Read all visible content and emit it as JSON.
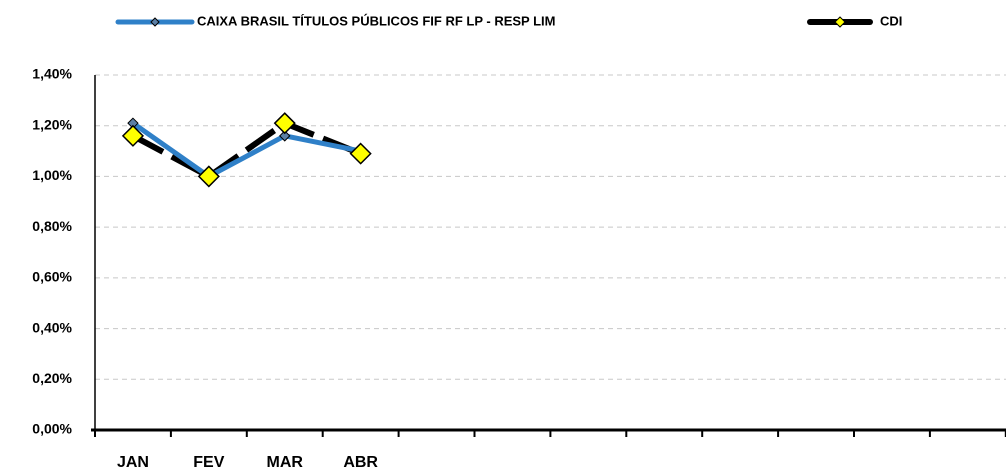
{
  "chart_data": {
    "type": "line",
    "categories": [
      "JAN",
      "FEV",
      "MAR",
      "ABR",
      null,
      null,
      null,
      null,
      null,
      null,
      null,
      null
    ],
    "series": [
      {
        "name": "CAIXA BRASIL TÍTULOS PÚBLICOS FIF RF LP - RESP LIM",
        "color": "#2f80c8",
        "marker_color": "#5b7fa6",
        "values": [
          1.21,
          1.0,
          1.16,
          1.1,
          null,
          null,
          null,
          null,
          null,
          null,
          null,
          null
        ]
      },
      {
        "name": "CDI",
        "color": "#000000",
        "marker_color": "#ffff00",
        "values": [
          1.16,
          1.0,
          1.21,
          1.09,
          null,
          null,
          null,
          null,
          null,
          null,
          null,
          null
        ]
      }
    ],
    "ylim": [
      0,
      1.4
    ],
    "yticks": [
      {
        "value": 0,
        "label": "0,00%"
      },
      {
        "value": 0.2,
        "label": "0,20%"
      },
      {
        "value": 0.4,
        "label": "0,40%"
      },
      {
        "value": 0.6,
        "label": "0,60%"
      },
      {
        "value": 0.8,
        "label": "0,80%"
      },
      {
        "value": 1.0,
        "label": "1,00%"
      },
      {
        "value": 1.2,
        "label": "1,20%"
      },
      {
        "value": 1.4,
        "label": "1,40%"
      }
    ],
    "grid": true
  }
}
